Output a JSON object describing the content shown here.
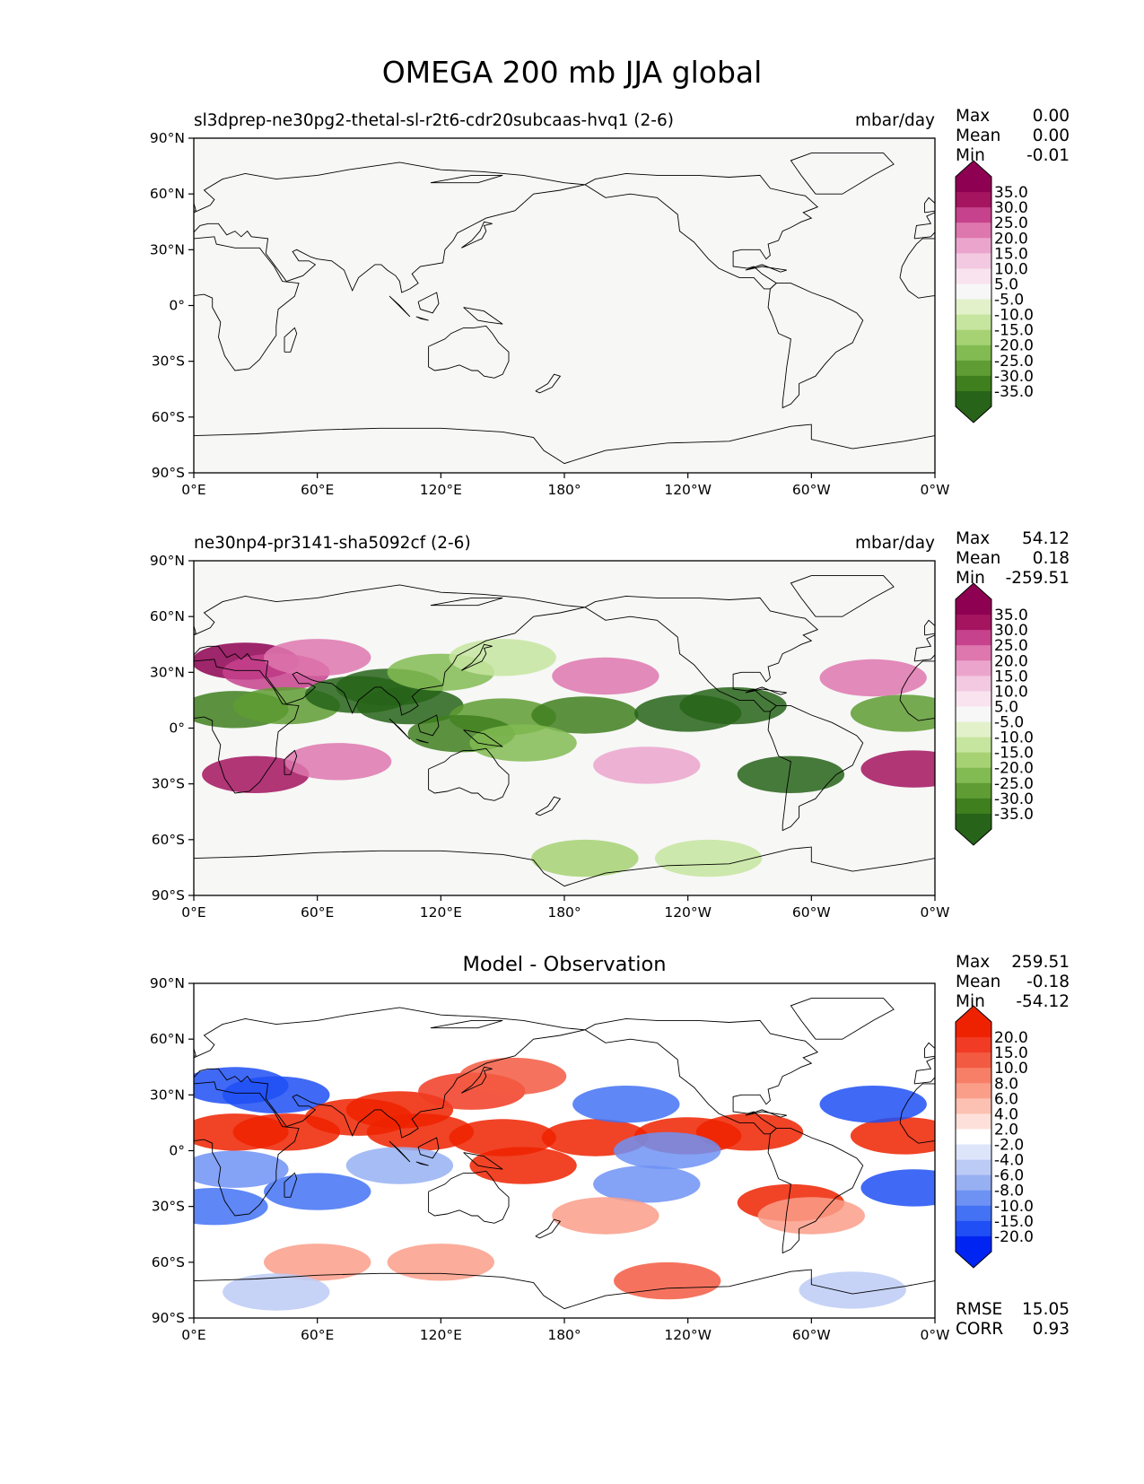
{
  "title": "OMEGA 200 mb JJA global",
  "x_ticks": [
    "0°E",
    "60°E",
    "120°E",
    "180°",
    "120°W",
    "60°W",
    "0°W"
  ],
  "y_ticks": [
    "90°N",
    "60°N",
    "30°N",
    "0°",
    "30°S",
    "60°S",
    "90°S"
  ],
  "colors": {
    "field_levels": [
      "#276419",
      "#3f7f1e",
      "#5f9c33",
      "#82bb52",
      "#a6d273",
      "#c6e59f",
      "#e2f1ca",
      "#f7f7f7",
      "#f9e3ef",
      "#f3c8e1",
      "#eba5cd",
      "#de77ae",
      "#c7428d",
      "#a5145f",
      "#8e0152"
    ],
    "diff_levels": [
      "#0025f2",
      "#1f4ff5",
      "#4372f5",
      "#6e92f4",
      "#97b0f2",
      "#bccbf5",
      "#dde5fb",
      "#ffffff",
      "#fde0d9",
      "#fcc1b2",
      "#fa9e8a",
      "#f77f67",
      "#f35a42",
      "#f13b24",
      "#ee2200"
    ],
    "land_outline": "#000000",
    "frame": "#000000"
  },
  "chart_data": [
    {
      "type": "heatmap",
      "title": "",
      "left_title": "sl3dprep-ne30pg2-thetal-sl-r2t6-cdr20subcaas-hvq1 (2-6)",
      "units": "mbar/day",
      "xlim": [
        0,
        360
      ],
      "ylim": [
        -90,
        90
      ],
      "stats": [
        {
          "label": "Max",
          "value": "0.00"
        },
        {
          "label": "Mean",
          "value": "0.00"
        },
        {
          "label": "Min",
          "value": "-0.01"
        }
      ],
      "colorbar": {
        "ticks": [
          "35.0",
          "30.0",
          "25.0",
          "20.0",
          "15.0",
          "10.0",
          "5.0",
          "-5.0",
          "-10.0",
          "-15.0",
          "-20.0",
          "-25.0",
          "-30.0",
          "-35.0"
        ],
        "extend": "both"
      },
      "field": []
    },
    {
      "type": "heatmap",
      "title": "",
      "left_title": "ne30np4-pr3141-sha5092cf (2-6)",
      "units": "mbar/day",
      "xlim": [
        0,
        360
      ],
      "ylim": [
        -90,
        90
      ],
      "stats": [
        {
          "label": "Max",
          "value": "54.12"
        },
        {
          "label": "Mean",
          "value": "0.18"
        },
        {
          "label": "Min",
          "value": "-259.51"
        }
      ],
      "colorbar": {
        "ticks": [
          "35.0",
          "30.0",
          "25.0",
          "20.0",
          "15.0",
          "10.0",
          "5.0",
          "-5.0",
          "-10.0",
          "-15.0",
          "-20.0",
          "-25.0",
          "-30.0",
          "-35.0"
        ],
        "extend": "both"
      },
      "field": [
        {
          "lon": 25,
          "lat": 36,
          "level": 14
        },
        {
          "lon": 40,
          "lat": 30,
          "level": 12
        },
        {
          "lon": 60,
          "lat": 38,
          "level": 11
        },
        {
          "lon": 20,
          "lat": 10,
          "level": 1
        },
        {
          "lon": 45,
          "lat": 12,
          "level": 2
        },
        {
          "lon": 80,
          "lat": 18,
          "level": 0
        },
        {
          "lon": 95,
          "lat": 22,
          "level": 0
        },
        {
          "lon": 105,
          "lat": 12,
          "level": 0
        },
        {
          "lon": 120,
          "lat": 30,
          "level": 3
        },
        {
          "lon": 150,
          "lat": 38,
          "level": 5
        },
        {
          "lon": 150,
          "lat": 6,
          "level": 2
        },
        {
          "lon": 190,
          "lat": 7,
          "level": 1
        },
        {
          "lon": 240,
          "lat": 8,
          "level": 0
        },
        {
          "lon": 262,
          "lat": 12,
          "level": 0
        },
        {
          "lon": 130,
          "lat": -3,
          "level": 1
        },
        {
          "lon": 160,
          "lat": -8,
          "level": 3
        },
        {
          "lon": 290,
          "lat": -25,
          "level": 0
        },
        {
          "lon": 345,
          "lat": 8,
          "level": 2
        },
        {
          "lon": 200,
          "lat": 28,
          "level": 11
        },
        {
          "lon": 330,
          "lat": 27,
          "level": 11
        },
        {
          "lon": 30,
          "lat": -25,
          "level": 13
        },
        {
          "lon": 70,
          "lat": -18,
          "level": 11
        },
        {
          "lon": 350,
          "lat": -22,
          "level": 13
        },
        {
          "lon": 220,
          "lat": -20,
          "level": 10
        },
        {
          "lon": 190,
          "lat": -70,
          "level": 4
        },
        {
          "lon": 250,
          "lat": -70,
          "level": 5
        }
      ]
    },
    {
      "type": "heatmap",
      "title": "Model - Observation",
      "left_title": "",
      "units": "",
      "xlim": [
        0,
        360
      ],
      "ylim": [
        -90,
        90
      ],
      "stats": [
        {
          "label": "Max",
          "value": "259.51"
        },
        {
          "label": "Mean",
          "value": "-0.18"
        },
        {
          "label": "Min",
          "value": "-54.12"
        }
      ],
      "metrics": [
        {
          "label": "RMSE",
          "value": "15.05"
        },
        {
          "label": "CORR",
          "value": "0.93"
        }
      ],
      "colorbar": {
        "ticks": [
          "20.0",
          "15.0",
          "10.0",
          "8.0",
          "6.0",
          "4.0",
          "2.0",
          "-2.0",
          "-4.0",
          "-6.0",
          "-8.0",
          "-10.0",
          "-15.0",
          "-20.0"
        ],
        "extend": "both"
      },
      "field": [
        {
          "lon": 20,
          "lat": 35,
          "level": 1
        },
        {
          "lon": 40,
          "lat": 30,
          "level": 1
        },
        {
          "lon": 10,
          "lat": -30,
          "level": 2
        },
        {
          "lon": 20,
          "lat": 10,
          "level": 14
        },
        {
          "lon": 45,
          "lat": 10,
          "level": 14
        },
        {
          "lon": 80,
          "lat": 18,
          "level": 14
        },
        {
          "lon": 100,
          "lat": 22,
          "level": 14
        },
        {
          "lon": 110,
          "lat": 10,
          "level": 14
        },
        {
          "lon": 135,
          "lat": 32,
          "level": 13
        },
        {
          "lon": 155,
          "lat": 40,
          "level": 12
        },
        {
          "lon": 150,
          "lat": 7,
          "level": 14
        },
        {
          "lon": 195,
          "lat": 7,
          "level": 14
        },
        {
          "lon": 240,
          "lat": 8,
          "level": 14
        },
        {
          "lon": 270,
          "lat": 10,
          "level": 14
        },
        {
          "lon": 160,
          "lat": -8,
          "level": 14
        },
        {
          "lon": 290,
          "lat": -28,
          "level": 14
        },
        {
          "lon": 345,
          "lat": 8,
          "level": 14
        },
        {
          "lon": 210,
          "lat": 25,
          "level": 2
        },
        {
          "lon": 330,
          "lat": 25,
          "level": 1
        },
        {
          "lon": 60,
          "lat": -22,
          "level": 2
        },
        {
          "lon": 220,
          "lat": -18,
          "level": 3
        },
        {
          "lon": 350,
          "lat": -20,
          "level": 1
        },
        {
          "lon": 20,
          "lat": -10,
          "level": 3
        },
        {
          "lon": 100,
          "lat": -8,
          "level": 4
        },
        {
          "lon": 230,
          "lat": 0,
          "level": 3
        },
        {
          "lon": 230,
          "lat": -70,
          "level": 12
        },
        {
          "lon": 120,
          "lat": -60,
          "level": 10
        },
        {
          "lon": 60,
          "lat": -60,
          "level": 10
        },
        {
          "lon": 40,
          "lat": -76,
          "level": 5
        },
        {
          "lon": 320,
          "lat": -75,
          "level": 5
        },
        {
          "lon": 200,
          "lat": -35,
          "level": 10
        },
        {
          "lon": 300,
          "lat": -35,
          "level": 10
        }
      ]
    }
  ]
}
